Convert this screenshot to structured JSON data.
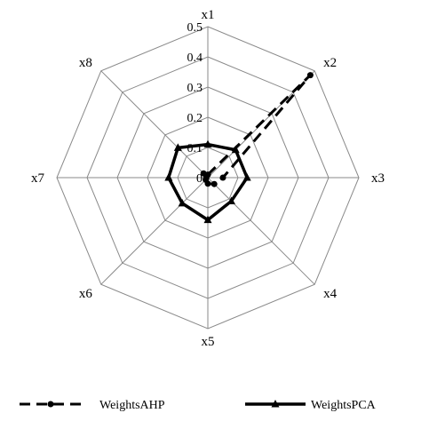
{
  "chart_data": {
    "type": "radar",
    "axes": [
      "x1",
      "x2",
      "x3",
      "x4",
      "x5",
      "x6",
      "x7",
      "x8"
    ],
    "ticks": [
      "0",
      "0.1",
      "0.2",
      "0.3",
      "0.4",
      "0.5"
    ],
    "rlim": [
      0,
      0.5
    ],
    "grid": true,
    "legend_position": "bottom",
    "series": [
      {
        "name": "WeightsAHP",
        "values": [
          0.01,
          0.48,
          0.05,
          0.03,
          0.02,
          0.01,
          0.005,
          0.02
        ],
        "line_style": "dashed",
        "marker": "circle"
      },
      {
        "name": "WeightsPCA",
        "values": [
          0.11,
          0.13,
          0.13,
          0.11,
          0.14,
          0.12,
          0.13,
          0.14
        ],
        "line_style": "solid",
        "marker": "triangle"
      }
    ]
  }
}
